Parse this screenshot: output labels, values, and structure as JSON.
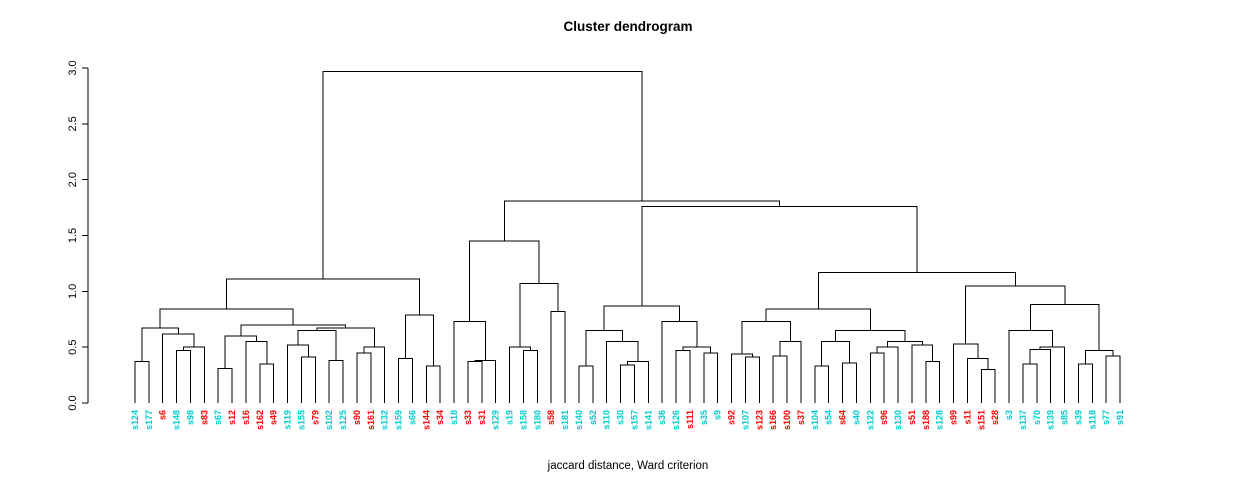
{
  "title": "Cluster dendrogram",
  "caption": "jaccard distance, Ward criterion",
  "colors": {
    "red": "#FF0000",
    "cyan": "#00CDCD",
    "line": "#000000",
    "axis_text": "#000000",
    "background": "#FFFFFF"
  },
  "y_axis": {
    "tick_labels": [
      "0.0",
      "0.5",
      "1.0",
      "1.5",
      "2.0",
      "2.5",
      "3.0"
    ],
    "tick_values": [
      0,
      0.5,
      1.0,
      1.5,
      2.0,
      2.5,
      3.0
    ],
    "min": 0,
    "max": 3
  },
  "chart_data": {
    "type": "dendrogram",
    "title": "Cluster dendrogram",
    "xlabel": "jaccard distance, Ward criterion",
    "ylim": [
      0,
      3
    ],
    "grid": false,
    "legend": "none",
    "leaves": [
      {
        "label": "s124",
        "color": "cyan"
      },
      {
        "label": "s177",
        "color": "cyan"
      },
      {
        "label": "s6",
        "color": "red"
      },
      {
        "label": "s148",
        "color": "cyan"
      },
      {
        "label": "s98",
        "color": "cyan"
      },
      {
        "label": "s83",
        "color": "red"
      },
      {
        "label": "s67",
        "color": "cyan"
      },
      {
        "label": "s12",
        "color": "red"
      },
      {
        "label": "s16",
        "color": "red"
      },
      {
        "label": "s162",
        "color": "red"
      },
      {
        "label": "s49",
        "color": "red"
      },
      {
        "label": "s119",
        "color": "cyan"
      },
      {
        "label": "s155",
        "color": "cyan"
      },
      {
        "label": "s79",
        "color": "red"
      },
      {
        "label": "s102",
        "color": "cyan"
      },
      {
        "label": "s125",
        "color": "cyan"
      },
      {
        "label": "s90",
        "color": "red"
      },
      {
        "label": "s161",
        "color": "red"
      },
      {
        "label": "s132",
        "color": "cyan"
      },
      {
        "label": "s159",
        "color": "cyan"
      },
      {
        "label": "s66",
        "color": "cyan"
      },
      {
        "label": "s144",
        "color": "red"
      },
      {
        "label": "s34",
        "color": "red"
      },
      {
        "label": "s18",
        "color": "cyan"
      },
      {
        "label": "s33",
        "color": "red"
      },
      {
        "label": "s31",
        "color": "red"
      },
      {
        "label": "s129",
        "color": "cyan"
      },
      {
        "label": "s19",
        "color": "cyan"
      },
      {
        "label": "s158",
        "color": "cyan"
      },
      {
        "label": "s180",
        "color": "cyan"
      },
      {
        "label": "s58",
        "color": "red"
      },
      {
        "label": "s181",
        "color": "cyan"
      },
      {
        "label": "s140",
        "color": "cyan"
      },
      {
        "label": "s52",
        "color": "cyan"
      },
      {
        "label": "s110",
        "color": "cyan"
      },
      {
        "label": "s30",
        "color": "cyan"
      },
      {
        "label": "s157",
        "color": "cyan"
      },
      {
        "label": "s141",
        "color": "cyan"
      },
      {
        "label": "s36",
        "color": "cyan"
      },
      {
        "label": "s126",
        "color": "cyan"
      },
      {
        "label": "s111",
        "color": "red"
      },
      {
        "label": "s35",
        "color": "cyan"
      },
      {
        "label": "s9",
        "color": "cyan"
      },
      {
        "label": "s92",
        "color": "red"
      },
      {
        "label": "s107",
        "color": "cyan"
      },
      {
        "label": "s123",
        "color": "red"
      },
      {
        "label": "s166",
        "color": "red"
      },
      {
        "label": "s100",
        "color": "red"
      },
      {
        "label": "s37",
        "color": "red"
      },
      {
        "label": "s104",
        "color": "cyan"
      },
      {
        "label": "s54",
        "color": "cyan"
      },
      {
        "label": "s64",
        "color": "red"
      },
      {
        "label": "s40",
        "color": "cyan"
      },
      {
        "label": "s122",
        "color": "cyan"
      },
      {
        "label": "s96",
        "color": "red"
      },
      {
        "label": "s130",
        "color": "cyan"
      },
      {
        "label": "s51",
        "color": "red"
      },
      {
        "label": "s188",
        "color": "red"
      },
      {
        "label": "s128",
        "color": "cyan"
      },
      {
        "label": "s99",
        "color": "red"
      },
      {
        "label": "s11",
        "color": "red"
      },
      {
        "label": "s151",
        "color": "red"
      },
      {
        "label": "s28",
        "color": "red"
      },
      {
        "label": "s3",
        "color": "cyan"
      },
      {
        "label": "s137",
        "color": "cyan"
      },
      {
        "label": "s70",
        "color": "cyan"
      },
      {
        "label": "s139",
        "color": "cyan"
      },
      {
        "label": "s85",
        "color": "cyan"
      },
      {
        "label": "s39",
        "color": "cyan"
      },
      {
        "label": "s118",
        "color": "cyan"
      },
      {
        "label": "s77",
        "color": "cyan"
      },
      {
        "label": "s91",
        "color": "cyan"
      }
    ],
    "merges": [
      [
        0,
        1,
        0.37
      ],
      [
        3,
        4,
        0.47
      ],
      [
        73,
        5,
        0.5
      ],
      [
        2,
        74,
        0.62
      ],
      [
        72,
        75,
        0.67
      ],
      [
        6,
        7,
        0.31
      ],
      [
        9,
        10,
        0.35
      ],
      [
        8,
        78,
        0.55
      ],
      [
        77,
        79,
        0.6
      ],
      [
        12,
        13,
        0.41
      ],
      [
        11,
        81,
        0.52
      ],
      [
        14,
        15,
        0.38
      ],
      [
        82,
        83,
        0.65
      ],
      [
        16,
        17,
        0.45
      ],
      [
        85,
        18,
        0.5
      ],
      [
        19,
        20,
        0.4
      ],
      [
        21,
        22,
        0.33
      ],
      [
        87,
        88,
        0.79
      ],
      [
        84,
        86,
        0.67
      ],
      [
        80,
        90,
        0.7
      ],
      [
        76,
        91,
        0.84
      ],
      [
        92,
        89,
        1.11
      ],
      [
        24,
        25,
        0.37
      ],
      [
        94,
        26,
        0.38
      ],
      [
        23,
        95,
        0.73
      ],
      [
        28,
        29,
        0.47
      ],
      [
        27,
        97,
        0.5
      ],
      [
        30,
        31,
        0.82
      ],
      [
        98,
        99,
        1.07
      ],
      [
        96,
        100,
        1.45
      ],
      [
        32,
        33,
        0.33
      ],
      [
        35,
        36,
        0.34
      ],
      [
        103,
        37,
        0.37
      ],
      [
        34,
        104,
        0.55
      ],
      [
        102,
        105,
        0.65
      ],
      [
        39,
        40,
        0.47
      ],
      [
        41,
        42,
        0.45
      ],
      [
        107,
        108,
        0.5
      ],
      [
        38,
        109,
        0.73
      ],
      [
        106,
        110,
        0.87
      ],
      [
        44,
        45,
        0.41
      ],
      [
        43,
        112,
        0.44
      ],
      [
        46,
        47,
        0.42
      ],
      [
        114,
        48,
        0.55
      ],
      [
        113,
        115,
        0.73
      ],
      [
        49,
        50,
        0.33
      ],
      [
        51,
        52,
        0.36
      ],
      [
        117,
        118,
        0.55
      ],
      [
        53,
        54,
        0.45
      ],
      [
        120,
        55,
        0.5
      ],
      [
        57,
        58,
        0.37
      ],
      [
        56,
        122,
        0.52
      ],
      [
        121,
        123,
        0.55
      ],
      [
        119,
        124,
        0.65
      ],
      [
        61,
        62,
        0.3
      ],
      [
        60,
        126,
        0.4
      ],
      [
        59,
        127,
        0.53
      ],
      [
        64,
        65,
        0.35
      ],
      [
        129,
        66,
        0.48
      ],
      [
        130,
        67,
        0.5
      ],
      [
        63,
        131,
        0.65
      ],
      [
        68,
        69,
        0.35
      ],
      [
        70,
        71,
        0.42
      ],
      [
        133,
        134,
        0.47
      ],
      [
        132,
        135,
        0.88
      ],
      [
        128,
        136,
        1.05
      ],
      [
        116,
        125,
        0.84
      ],
      [
        138,
        137,
        1.17
      ],
      [
        111,
        139,
        1.76
      ],
      [
        101,
        140,
        1.81
      ],
      [
        93,
        141,
        2.97
      ]
    ]
  }
}
